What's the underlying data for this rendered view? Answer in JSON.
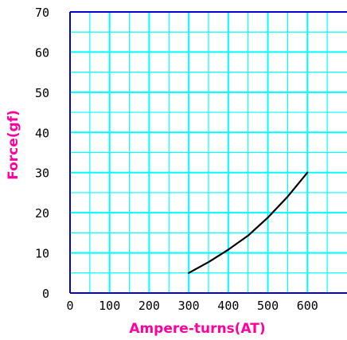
{
  "chart_data": {
    "type": "line",
    "title": "",
    "xlabel": "Ampere-turns(AT)",
    "ylabel": "Force(gf)",
    "xlim": [
      0,
      700
    ],
    "ylim": [
      0,
      70
    ],
    "xticks": [
      "0",
      "100",
      "200",
      "300",
      "400",
      "500",
      "600"
    ],
    "yticks": [
      "0",
      "10",
      "20",
      "30",
      "40",
      "50",
      "60",
      "70"
    ],
    "grid": true,
    "x_minor_step": 50,
    "y_minor_step": 5,
    "series": [
      {
        "x": [
          300,
          350,
          400,
          450,
          500,
          550,
          600
        ],
        "y": [
          5,
          7.7,
          10.8,
          14.3,
          18.8,
          24.0,
          30.0
        ]
      }
    ],
    "colors": {
      "grid": "#00ffff",
      "frame": "#0000cc",
      "series": "#000000",
      "axis_title": "#ff00a0"
    }
  }
}
